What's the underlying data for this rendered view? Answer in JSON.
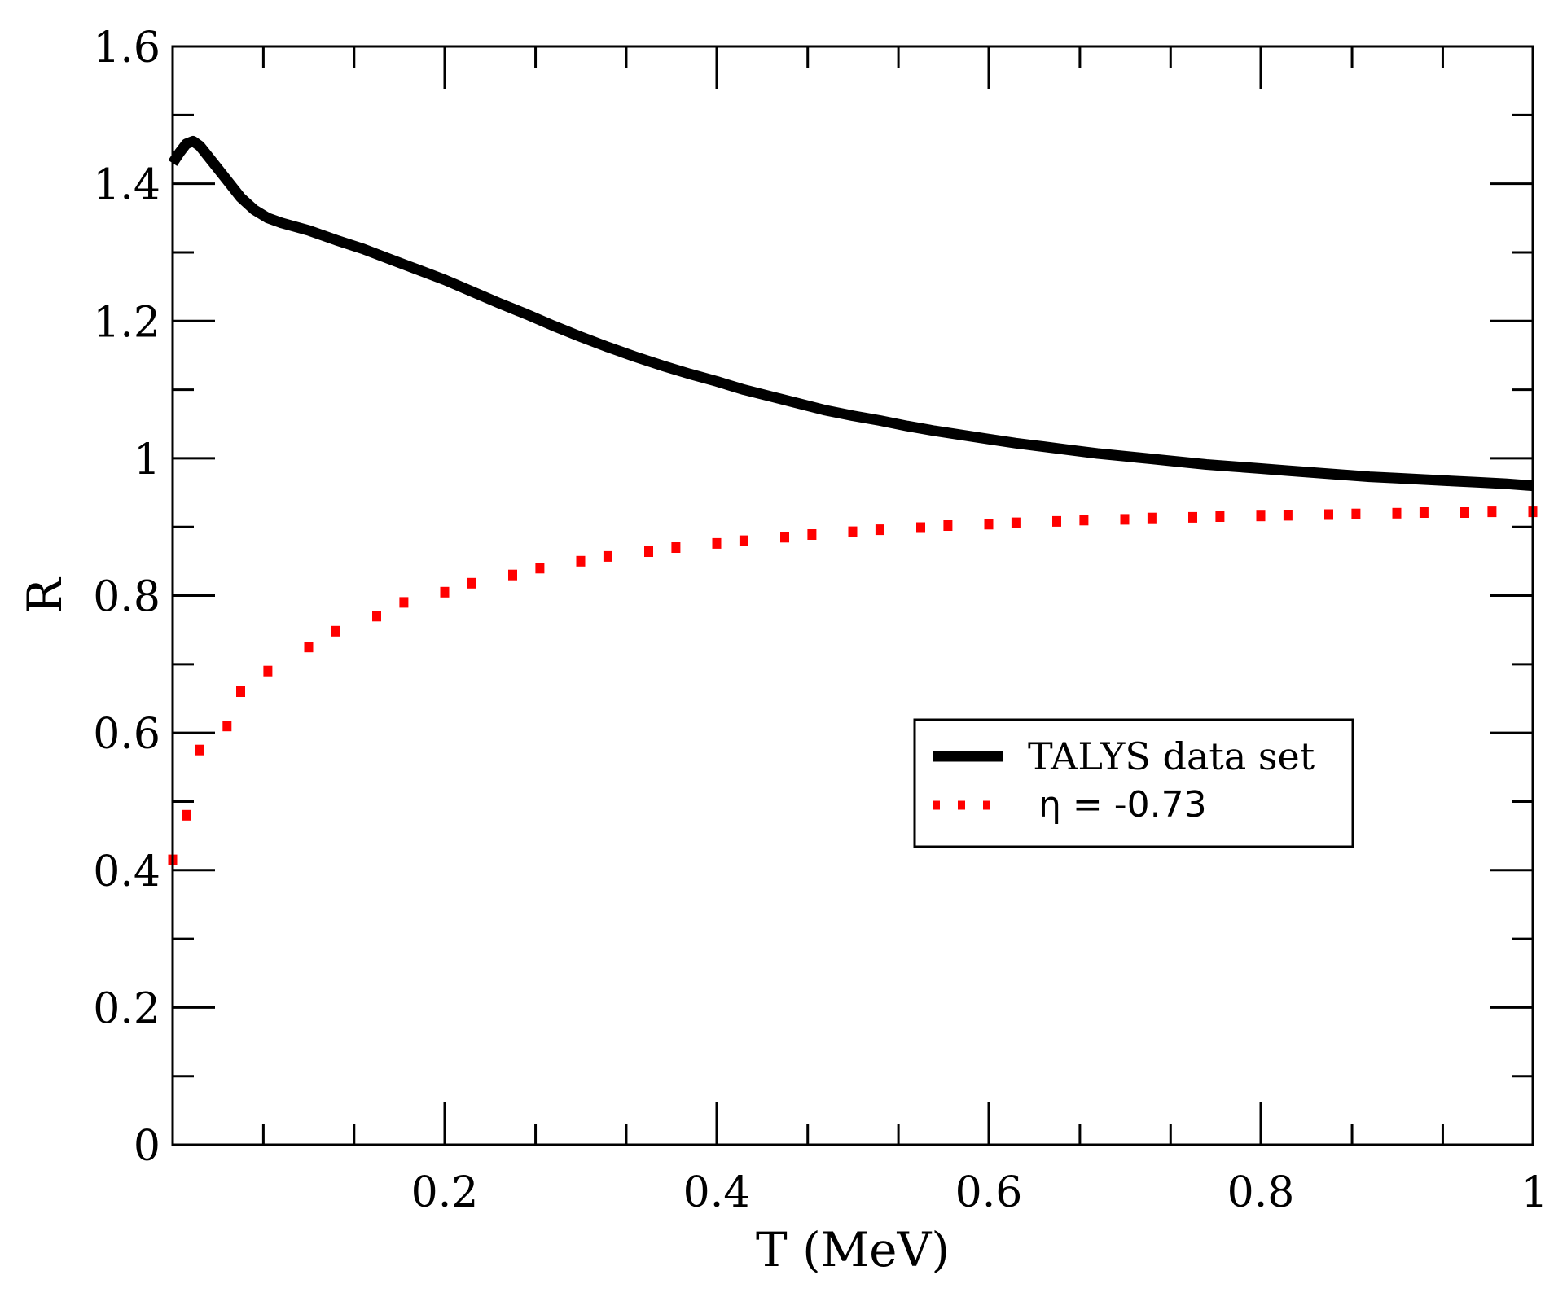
{
  "chart_data": {
    "type": "line",
    "title": "",
    "xlabel": "T (MeV)",
    "ylabel": "R",
    "xlim": [
      0,
      1.0
    ],
    "ylim": [
      0,
      1.6
    ],
    "x_ticks": [
      {
        "value": 0.2,
        "label": "0.2"
      },
      {
        "value": 0.4,
        "label": "0.4"
      },
      {
        "value": 0.6,
        "label": "0.6"
      },
      {
        "value": 0.8,
        "label": "0.8"
      },
      {
        "value": 1.0,
        "label": "1"
      }
    ],
    "y_ticks": [
      {
        "value": 0,
        "label": "0"
      },
      {
        "value": 0.2,
        "label": "0.2"
      },
      {
        "value": 0.4,
        "label": "0.4"
      },
      {
        "value": 0.6,
        "label": "0.6"
      },
      {
        "value": 0.8,
        "label": "0.8"
      },
      {
        "value": 1.0,
        "label": "1"
      },
      {
        "value": 1.2,
        "label": "1.2"
      },
      {
        "value": 1.4,
        "label": "1.4"
      },
      {
        "value": 1.6,
        "label": "1.6"
      }
    ],
    "x_minor_step": 0.0667,
    "y_minor_step": 0.1,
    "legend_position": "center-right",
    "series": [
      {
        "name": "TALYS data set",
        "style": "solid",
        "color": "#000000",
        "x": [
          0.0,
          0.005,
          0.01,
          0.015,
          0.02,
          0.03,
          0.04,
          0.05,
          0.06,
          0.07,
          0.08,
          0.1,
          0.12,
          0.14,
          0.16,
          0.18,
          0.2,
          0.22,
          0.24,
          0.26,
          0.28,
          0.3,
          0.32,
          0.34,
          0.36,
          0.38,
          0.4,
          0.42,
          0.44,
          0.46,
          0.48,
          0.5,
          0.52,
          0.54,
          0.56,
          0.58,
          0.6,
          0.62,
          0.64,
          0.66,
          0.68,
          0.7,
          0.72,
          0.74,
          0.76,
          0.78,
          0.8,
          0.82,
          0.84,
          0.86,
          0.88,
          0.9,
          0.92,
          0.94,
          0.96,
          0.98,
          1.0
        ],
        "y": [
          1.43,
          1.445,
          1.458,
          1.462,
          1.455,
          1.43,
          1.405,
          1.38,
          1.362,
          1.35,
          1.343,
          1.332,
          1.318,
          1.305,
          1.29,
          1.275,
          1.26,
          1.243,
          1.226,
          1.21,
          1.193,
          1.177,
          1.162,
          1.148,
          1.135,
          1.123,
          1.112,
          1.1,
          1.09,
          1.08,
          1.07,
          1.062,
          1.055,
          1.047,
          1.04,
          1.034,
          1.028,
          1.022,
          1.017,
          1.012,
          1.007,
          1.003,
          0.999,
          0.995,
          0.991,
          0.988,
          0.985,
          0.982,
          0.979,
          0.976,
          0.973,
          0.971,
          0.969,
          0.967,
          0.965,
          0.963,
          0.96
        ]
      },
      {
        "name": "η  = -0.73",
        "style": "dotted",
        "color": "#ff0000",
        "x": [
          0.0,
          0.01,
          0.02,
          0.04,
          0.05,
          0.07,
          0.1,
          0.12,
          0.15,
          0.17,
          0.2,
          0.22,
          0.25,
          0.27,
          0.3,
          0.32,
          0.35,
          0.37,
          0.4,
          0.42,
          0.45,
          0.47,
          0.5,
          0.52,
          0.55,
          0.57,
          0.6,
          0.62,
          0.65,
          0.67,
          0.7,
          0.72,
          0.75,
          0.77,
          0.8,
          0.82,
          0.85,
          0.87,
          0.9,
          0.92,
          0.95,
          0.97,
          1.0
        ],
        "y": [
          0.415,
          0.48,
          0.575,
          0.61,
          0.66,
          0.69,
          0.725,
          0.748,
          0.77,
          0.79,
          0.805,
          0.818,
          0.83,
          0.84,
          0.85,
          0.857,
          0.864,
          0.87,
          0.876,
          0.88,
          0.885,
          0.889,
          0.893,
          0.896,
          0.899,
          0.902,
          0.904,
          0.906,
          0.908,
          0.91,
          0.911,
          0.913,
          0.914,
          0.915,
          0.916,
          0.917,
          0.918,
          0.919,
          0.92,
          0.921,
          0.921,
          0.922,
          0.922
        ]
      }
    ]
  }
}
